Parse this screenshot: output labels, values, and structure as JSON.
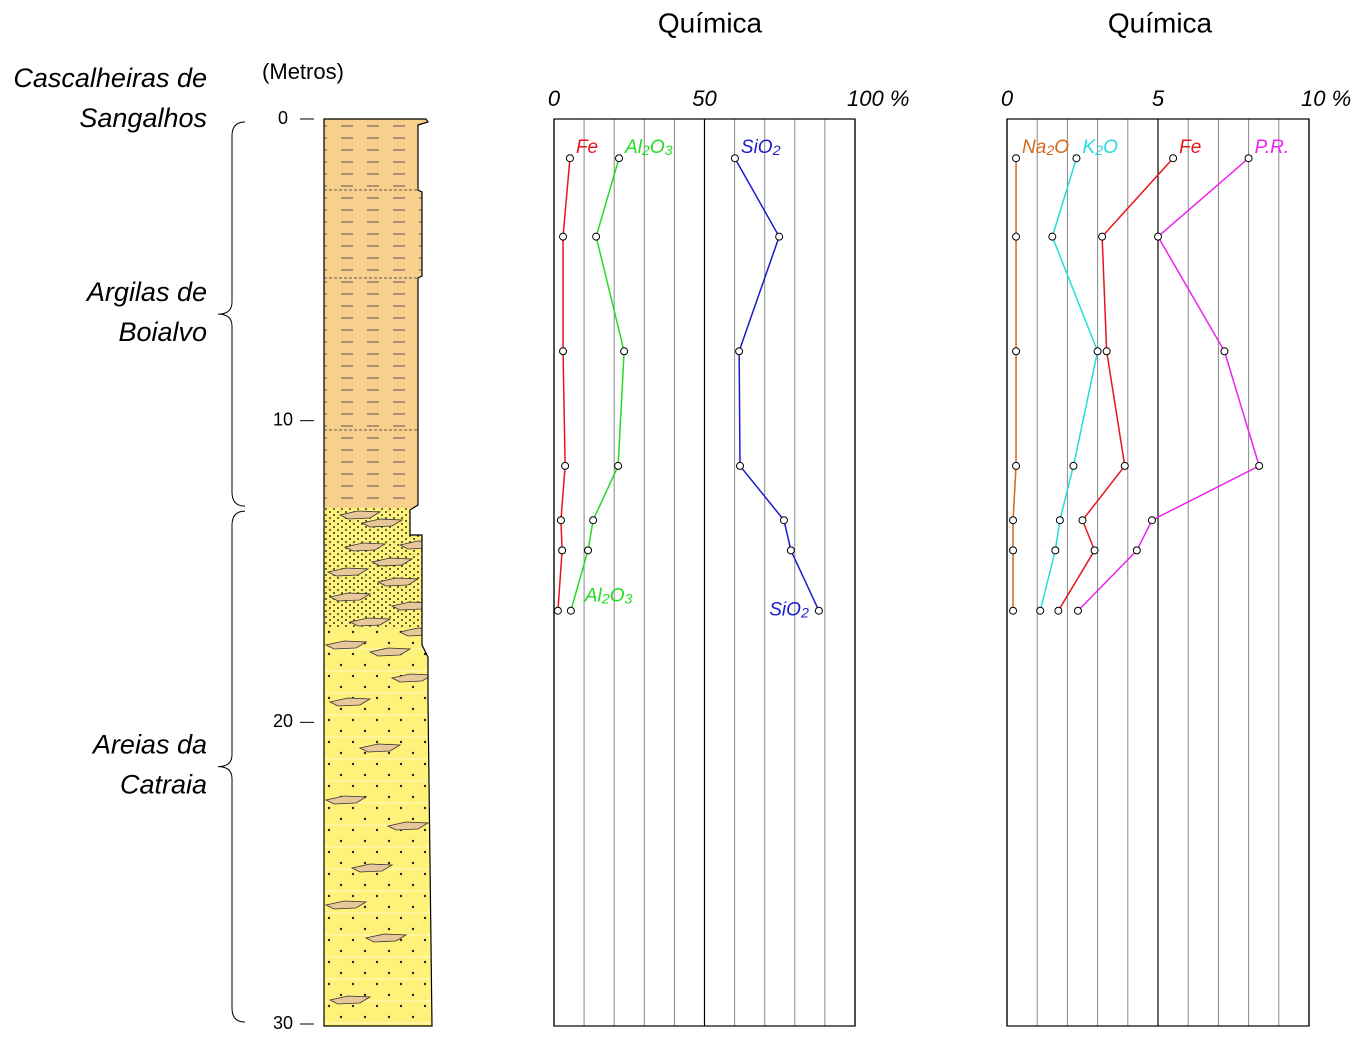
{
  "depth_axis": {
    "label": "(Metros)",
    "ylim": [
      0,
      30
    ],
    "yticks": [
      0,
      10,
      20,
      30
    ]
  },
  "units": [
    {
      "name": [
        "Cascalheiras de",
        "Sangalhos"
      ]
    },
    {
      "name": [
        "Argilas de",
        "Boialvo"
      ],
      "top": 0,
      "base": 12.9
    },
    {
      "name": [
        "Areias da",
        "Catraia"
      ],
      "top": 12.9,
      "base": 30
    }
  ],
  "chart_data": [
    {
      "type": "line",
      "title": "Química",
      "xlim": [
        0,
        100
      ],
      "xticks": [
        0,
        50,
        {
          "value": 100,
          "label": "100 %"
        }
      ],
      "grid": [
        10,
        20,
        30,
        40,
        60,
        70,
        80,
        90
      ],
      "ylim": [
        0,
        30
      ],
      "y": [
        1.3,
        3.9,
        7.7,
        11.5,
        13.3,
        14.3,
        16.3
      ],
      "series": [
        {
          "name": "Fe",
          "color": "#e8141c",
          "values": [
            5.3,
            3,
            3,
            3.7,
            2.3,
            2.7,
            1.3
          ]
        },
        {
          "name": "Al2O3",
          "color": "#22dd22",
          "values": [
            21.6,
            14,
            23.3,
            21.3,
            13,
            11.3,
            5.6
          ]
        },
        {
          "name": "SiO2",
          "color": "#1a1acc",
          "values": [
            60.1,
            74.8,
            61.5,
            61.8,
            76.4,
            78.7,
            88
          ]
        }
      ]
    },
    {
      "type": "line",
      "title": "Química",
      "xlim": [
        0,
        10
      ],
      "xticks": [
        0,
        5,
        {
          "value": 10,
          "label": "10 %"
        }
      ],
      "grid": [
        1,
        2,
        3,
        4,
        6,
        7,
        8,
        9
      ],
      "ylim": [
        0,
        30
      ],
      "y": [
        1.3,
        3.9,
        7.7,
        11.5,
        13.3,
        14.3,
        16.3
      ],
      "series": [
        {
          "name": "Na2O",
          "color": "#d2691e",
          "values": [
            0.3,
            0.3,
            0.3,
            0.3,
            0.2,
            0.2,
            0.2
          ]
        },
        {
          "name": "K2O",
          "color": "#22dddd",
          "values": [
            2.3,
            1.5,
            3.0,
            2.2,
            1.75,
            1.6,
            1.1
          ]
        },
        {
          "name": "Fe",
          "color": "#e8141c",
          "values": [
            5.5,
            3.15,
            3.3,
            3.9,
            2.5,
            2.9,
            1.7
          ]
        },
        {
          "name": "P.R.",
          "color": "#ee22ee",
          "values": [
            8.0,
            5.0,
            7.2,
            8.35,
            4.8,
            4.3,
            2.35
          ]
        }
      ]
    }
  ]
}
